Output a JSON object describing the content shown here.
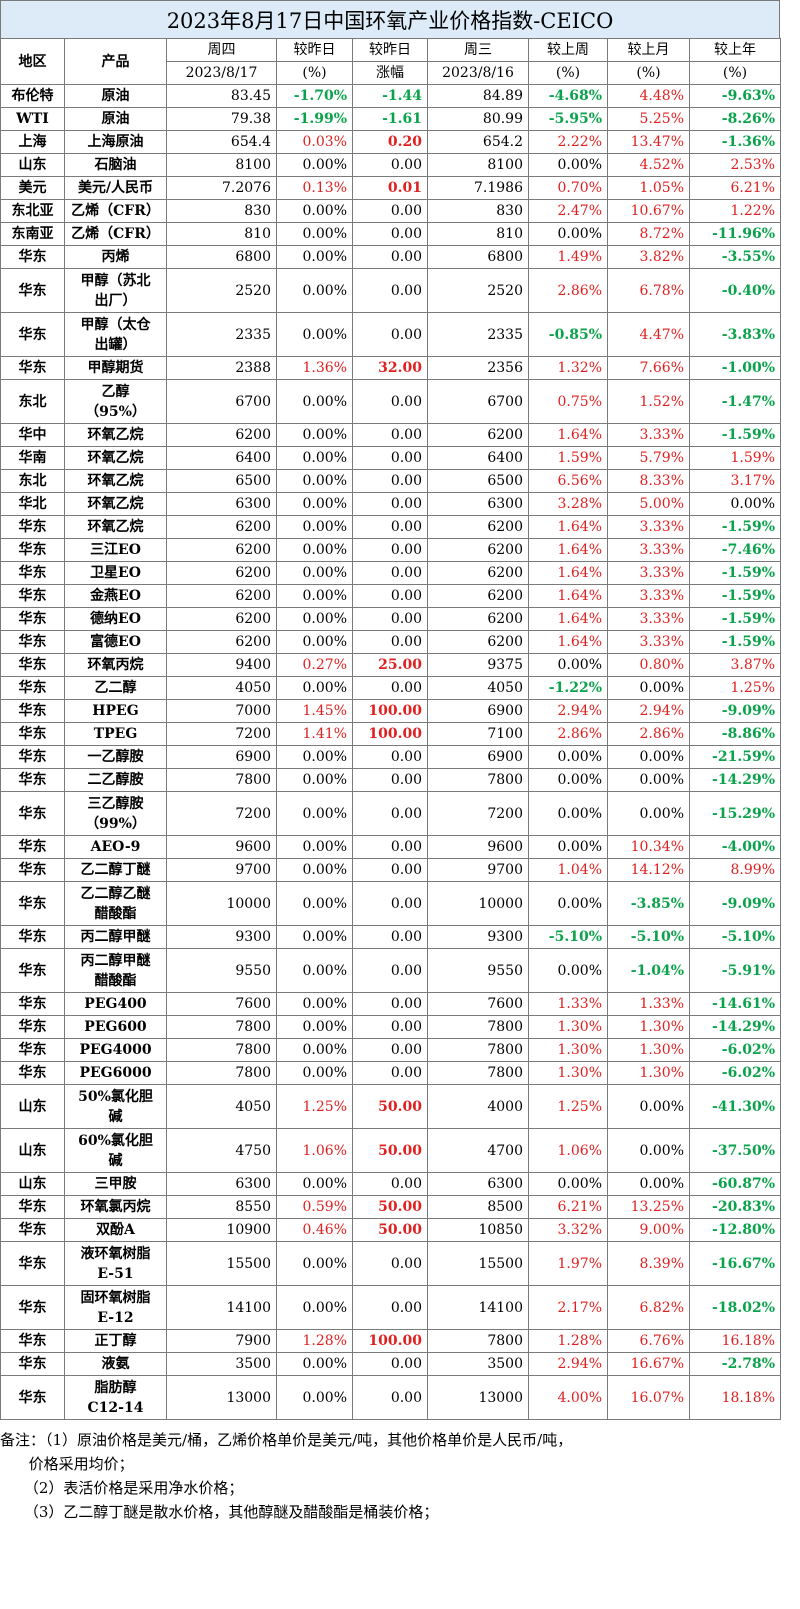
{
  "title": "2023年8月17日中国环氧产业价格指数-CEICO",
  "header": {
    "region": "地区",
    "product": "产品",
    "thu": "周四",
    "thu_date": "2023/8/17",
    "chg_pct": "较昨日",
    "chg_pct_unit": "(%)",
    "chg_amt": "较昨日",
    "chg_amt_unit": "涨幅",
    "wed": "周三",
    "wed_date": "2023/8/16",
    "week": "较上周",
    "week_unit": "(%)",
    "month": "较上月",
    "month_unit": "(%)",
    "year": "较上年",
    "year_unit": "(%)"
  },
  "colors": {
    "up": "#e02020",
    "down": "#0aa24a",
    "title_bg": "#dcebf7"
  },
  "rows": [
    {
      "region": "布伦特",
      "product": "原油",
      "thu": "83.45",
      "dpct": "-1.70%",
      "damt": "-1.44",
      "wed": "84.89",
      "week": "-4.68%",
      "month": "4.48%",
      "year": "-9.63%"
    },
    {
      "region": "WTI",
      "product": "原油",
      "thu": "79.38",
      "dpct": "-1.99%",
      "damt": "-1.61",
      "wed": "80.99",
      "week": "-5.95%",
      "month": "5.25%",
      "year": "-8.26%"
    },
    {
      "region": "上海",
      "product": "上海原油",
      "thu": "654.4",
      "dpct": "0.03%",
      "damt": "0.20",
      "wed": "654.2",
      "week": "2.22%",
      "month": "13.47%",
      "year": "-1.36%"
    },
    {
      "region": "山东",
      "product": "石脑油",
      "thu": "8100",
      "dpct": "0.00%",
      "damt": "0.00",
      "wed": "8100",
      "week": "0.00%",
      "month": "4.52%",
      "year": "2.53%"
    },
    {
      "region": "美元",
      "product": "美元/人民币",
      "thu": "7.2076",
      "dpct": "0.13%",
      "damt": "0.01",
      "wed": "7.1986",
      "week": "0.70%",
      "month": "1.05%",
      "year": "6.21%"
    },
    {
      "region": "东北亚",
      "product": "乙烯（CFR）",
      "thu": "830",
      "dpct": "0.00%",
      "damt": "0.00",
      "wed": "830",
      "week": "2.47%",
      "month": "10.67%",
      "year": "1.22%"
    },
    {
      "region": "东南亚",
      "product": "乙烯（CFR）",
      "thu": "810",
      "dpct": "0.00%",
      "damt": "0.00",
      "wed": "810",
      "week": "0.00%",
      "month": "8.72%",
      "year": "-11.96%"
    },
    {
      "region": "华东",
      "product": "丙烯",
      "thu": "6800",
      "dpct": "0.00%",
      "damt": "0.00",
      "wed": "6800",
      "week": "1.49%",
      "month": "3.82%",
      "year": "-3.55%"
    },
    {
      "region": "华东",
      "product": "甲醇（苏北",
      "product2": "出厂）",
      "thu": "2520",
      "dpct": "0.00%",
      "damt": "0.00",
      "wed": "2520",
      "week": "2.86%",
      "month": "6.78%",
      "year": "-0.40%"
    },
    {
      "region": "华东",
      "product": "甲醇（太仓",
      "product2": "出罐）",
      "thu": "2335",
      "dpct": "0.00%",
      "damt": "0.00",
      "wed": "2335",
      "week": "-0.85%",
      "month": "4.47%",
      "year": "-3.83%"
    },
    {
      "region": "华东",
      "product": "甲醇期货",
      "thu": "2388",
      "dpct": "1.36%",
      "damt": "32.00",
      "wed": "2356",
      "week": "1.32%",
      "month": "7.66%",
      "year": "-1.00%"
    },
    {
      "region": "东北",
      "product": "乙醇",
      "product2": "（95%）",
      "thu": "6700",
      "dpct": "0.00%",
      "damt": "0.00",
      "wed": "6700",
      "week": "0.75%",
      "month": "1.52%",
      "year": "-1.47%"
    },
    {
      "region": "华中",
      "product": "环氧乙烷",
      "thu": "6200",
      "dpct": "0.00%",
      "damt": "0.00",
      "wed": "6200",
      "week": "1.64%",
      "month": "3.33%",
      "year": "-1.59%"
    },
    {
      "region": "华南",
      "product": "环氧乙烷",
      "thu": "6400",
      "dpct": "0.00%",
      "damt": "0.00",
      "wed": "6400",
      "week": "1.59%",
      "month": "5.79%",
      "year": "1.59%"
    },
    {
      "region": "东北",
      "product": "环氧乙烷",
      "thu": "6500",
      "dpct": "0.00%",
      "damt": "0.00",
      "wed": "6500",
      "week": "6.56%",
      "month": "8.33%",
      "year": "3.17%"
    },
    {
      "region": "华北",
      "product": "环氧乙烷",
      "thu": "6300",
      "dpct": "0.00%",
      "damt": "0.00",
      "wed": "6300",
      "week": "3.28%",
      "month": "5.00%",
      "year": "0.00%"
    },
    {
      "region": "华东",
      "product": "环氧乙烷",
      "thu": "6200",
      "dpct": "0.00%",
      "damt": "0.00",
      "wed": "6200",
      "week": "1.64%",
      "month": "3.33%",
      "year": "-1.59%"
    },
    {
      "region": "华东",
      "product": "三江EO",
      "thu": "6200",
      "dpct": "0.00%",
      "damt": "0.00",
      "wed": "6200",
      "week": "1.64%",
      "month": "3.33%",
      "year": "-7.46%"
    },
    {
      "region": "华东",
      "product": "卫星EO",
      "thu": "6200",
      "dpct": "0.00%",
      "damt": "0.00",
      "wed": "6200",
      "week": "1.64%",
      "month": "3.33%",
      "year": "-1.59%"
    },
    {
      "region": "华东",
      "product": "金燕EO",
      "thu": "6200",
      "dpct": "0.00%",
      "damt": "0.00",
      "wed": "6200",
      "week": "1.64%",
      "month": "3.33%",
      "year": "-1.59%"
    },
    {
      "region": "华东",
      "product": "德纳EO",
      "thu": "6200",
      "dpct": "0.00%",
      "damt": "0.00",
      "wed": "6200",
      "week": "1.64%",
      "month": "3.33%",
      "year": "-1.59%"
    },
    {
      "region": "华东",
      "product": "富德EO",
      "thu": "6200",
      "dpct": "0.00%",
      "damt": "0.00",
      "wed": "6200",
      "week": "1.64%",
      "month": "3.33%",
      "year": "-1.59%"
    },
    {
      "region": "华东",
      "product": "环氧丙烷",
      "thu": "9400",
      "dpct": "0.27%",
      "damt": "25.00",
      "wed": "9375",
      "week": "0.00%",
      "month": "0.80%",
      "year": "3.87%"
    },
    {
      "region": "华东",
      "product": "乙二醇",
      "thu": "4050",
      "dpct": "0.00%",
      "damt": "0.00",
      "wed": "4050",
      "week": "-1.22%",
      "month": "0.00%",
      "year": "1.25%"
    },
    {
      "region": "华东",
      "product": "HPEG",
      "thu": "7000",
      "dpct": "1.45%",
      "damt": "100.00",
      "wed": "6900",
      "week": "2.94%",
      "month": "2.94%",
      "year": "-9.09%"
    },
    {
      "region": "华东",
      "product": "TPEG",
      "thu": "7200",
      "dpct": "1.41%",
      "damt": "100.00",
      "wed": "7100",
      "week": "2.86%",
      "month": "2.86%",
      "year": "-8.86%"
    },
    {
      "region": "华东",
      "product": "一乙醇胺",
      "thu": "6900",
      "dpct": "0.00%",
      "damt": "0.00",
      "wed": "6900",
      "week": "0.00%",
      "month": "0.00%",
      "year": "-21.59%"
    },
    {
      "region": "华东",
      "product": "二乙醇胺",
      "thu": "7800",
      "dpct": "0.00%",
      "damt": "0.00",
      "wed": "7800",
      "week": "0.00%",
      "month": "0.00%",
      "year": "-14.29%"
    },
    {
      "region": "华东",
      "product": "三乙醇胺",
      "product2": "（99%）",
      "thu": "7200",
      "dpct": "0.00%",
      "damt": "0.00",
      "wed": "7200",
      "week": "0.00%",
      "month": "0.00%",
      "year": "-15.29%"
    },
    {
      "region": "华东",
      "product": "AEO-9",
      "thu": "9600",
      "dpct": "0.00%",
      "damt": "0.00",
      "wed": "9600",
      "week": "0.00%",
      "month": "10.34%",
      "year": "-4.00%"
    },
    {
      "region": "华东",
      "product": "乙二醇丁醚",
      "thu": "9700",
      "dpct": "0.00%",
      "damt": "0.00",
      "wed": "9700",
      "week": "1.04%",
      "month": "14.12%",
      "year": "8.99%"
    },
    {
      "region": "华东",
      "product": "乙二醇乙醚",
      "product2": "醋酸酯",
      "thu": "10000",
      "dpct": "0.00%",
      "damt": "0.00",
      "wed": "10000",
      "week": "0.00%",
      "month": "-3.85%",
      "year": "-9.09%"
    },
    {
      "region": "华东",
      "product": "丙二醇甲醚",
      "thu": "9300",
      "dpct": "0.00%",
      "damt": "0.00",
      "wed": "9300",
      "week": "-5.10%",
      "month": "-5.10%",
      "year": "-5.10%"
    },
    {
      "region": "华东",
      "product": "丙二醇甲醚",
      "product2": "醋酸酯",
      "thu": "9550",
      "dpct": "0.00%",
      "damt": "0.00",
      "wed": "9550",
      "week": "0.00%",
      "month": "-1.04%",
      "year": "-5.91%"
    },
    {
      "region": "华东",
      "product": "PEG400",
      "thu": "7600",
      "dpct": "0.00%",
      "damt": "0.00",
      "wed": "7600",
      "week": "1.33%",
      "month": "1.33%",
      "year": "-14.61%"
    },
    {
      "region": "华东",
      "product": "PEG600",
      "thu": "7800",
      "dpct": "0.00%",
      "damt": "0.00",
      "wed": "7800",
      "week": "1.30%",
      "month": "1.30%",
      "year": "-14.29%"
    },
    {
      "region": "华东",
      "product": "PEG4000",
      "thu": "7800",
      "dpct": "0.00%",
      "damt": "0.00",
      "wed": "7800",
      "week": "1.30%",
      "month": "1.30%",
      "year": "-6.02%"
    },
    {
      "region": "华东",
      "product": "PEG6000",
      "thu": "7800",
      "dpct": "0.00%",
      "damt": "0.00",
      "wed": "7800",
      "week": "1.30%",
      "month": "1.30%",
      "year": "-6.02%"
    },
    {
      "region": "山东",
      "product": "50%氯化胆",
      "product2": "碱",
      "thu": "4050",
      "dpct": "1.25%",
      "damt": "50.00",
      "wed": "4000",
      "week": "1.25%",
      "month": "0.00%",
      "year": "-41.30%"
    },
    {
      "region": "山东",
      "product": "60%氯化胆",
      "product2": "碱",
      "thu": "4750",
      "dpct": "1.06%",
      "damt": "50.00",
      "wed": "4700",
      "week": "1.06%",
      "month": "0.00%",
      "year": "-37.50%"
    },
    {
      "region": "山东",
      "product": "三甲胺",
      "thu": "6300",
      "dpct": "0.00%",
      "damt": "0.00",
      "wed": "6300",
      "week": "0.00%",
      "month": "0.00%",
      "year": "-60.87%"
    },
    {
      "region": "华东",
      "product": "环氧氯丙烷",
      "thu": "8550",
      "dpct": "0.59%",
      "damt": "50.00",
      "wed": "8500",
      "week": "6.21%",
      "month": "13.25%",
      "year": "-20.83%"
    },
    {
      "region": "华东",
      "product": "双酚A",
      "thu": "10900",
      "dpct": "0.46%",
      "damt": "50.00",
      "wed": "10850",
      "week": "3.32%",
      "month": "9.00%",
      "year": "-12.80%"
    },
    {
      "region": "华东",
      "product": "液环氧树脂",
      "product2": "E-51",
      "thu": "15500",
      "dpct": "0.00%",
      "damt": "0.00",
      "wed": "15500",
      "week": "1.97%",
      "month": "8.39%",
      "year": "-16.67%"
    },
    {
      "region": "华东",
      "product": "固环氧树脂",
      "product2": "E-12",
      "thu": "14100",
      "dpct": "0.00%",
      "damt": "0.00",
      "wed": "14100",
      "week": "2.17%",
      "month": "6.82%",
      "year": "-18.02%"
    },
    {
      "region": "华东",
      "product": "正丁醇",
      "thu": "7900",
      "dpct": "1.28%",
      "damt": "100.00",
      "wed": "7800",
      "week": "1.28%",
      "month": "6.76%",
      "year": "16.18%"
    },
    {
      "region": "华东",
      "product": "液氨",
      "thu": "3500",
      "dpct": "0.00%",
      "damt": "0.00",
      "wed": "3500",
      "week": "2.94%",
      "month": "16.67%",
      "year": "-2.78%"
    },
    {
      "region": "华东",
      "product": "脂肪醇",
      "product2": "C12-14",
      "thu": "13000",
      "dpct": "0.00%",
      "damt": "0.00",
      "wed": "13000",
      "week": "4.00%",
      "month": "16.07%",
      "year": "18.18%"
    }
  ],
  "notes": {
    "line1": "备注：（1）原油价格是美元/桶，乙烯价格单价是美元/吨，其他价格单价是人民币/吨，",
    "line2": "      价格采用均价；",
    "line3": "     （2）表活价格是采用净水价格；",
    "line4": "     （3）乙二醇丁醚是散水价格，其他醇醚及醋酸酯是桶装价格；"
  }
}
